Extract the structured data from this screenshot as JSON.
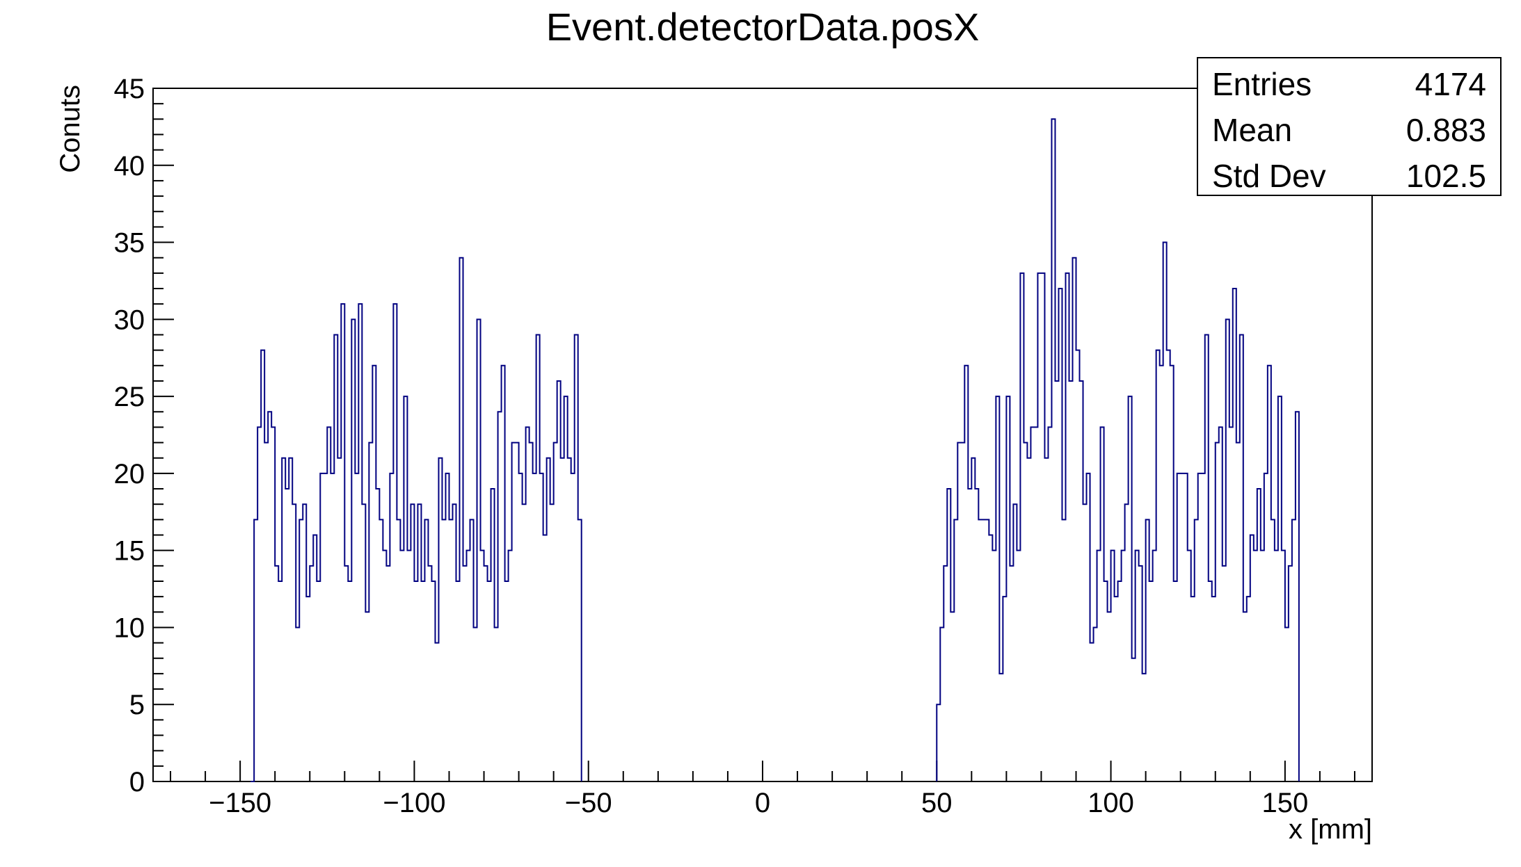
{
  "chart_data": {
    "type": "bar",
    "histogram": true,
    "title": "Event.detectorData.posX",
    "xlabel": "x [mm]",
    "ylabel": "Conuts",
    "xlim": [
      -175,
      175
    ],
    "ylim": [
      0,
      45
    ],
    "bin_width": 1,
    "x_ticks": [
      -150,
      -100,
      -50,
      0,
      50,
      100,
      150
    ],
    "x_tick_labels": [
      "−150",
      "−100",
      "−50",
      "0",
      "50",
      "100",
      "150"
    ],
    "y_ticks": [
      0,
      5,
      10,
      15,
      20,
      25,
      30,
      35,
      40,
      45
    ],
    "y_tick_labels": [
      "0",
      "5",
      "10",
      "15",
      "20",
      "25",
      "30",
      "35",
      "40",
      "45"
    ],
    "line_color": "#000080",
    "grid": false,
    "legend": "none",
    "series": [
      {
        "segments": [
          {
            "x_start": -147,
            "values": [
              0,
              17,
              23,
              28,
              22,
              24,
              23,
              14,
              13,
              21,
              19,
              21,
              18,
              10,
              17,
              18,
              12,
              14,
              16,
              13,
              20,
              20,
              23,
              20,
              29,
              21,
              31,
              14,
              13,
              30,
              20,
              31,
              18,
              11,
              22,
              27,
              19,
              17,
              15,
              14,
              20,
              31,
              17,
              15,
              25,
              15,
              18,
              13,
              18,
              13,
              17,
              14,
              13,
              9,
              21,
              17,
              20,
              17,
              18,
              13,
              34,
              14,
              15,
              17,
              10,
              30,
              15,
              14,
              13,
              19,
              10,
              24,
              27,
              13,
              15,
              22,
              22,
              20,
              18,
              23,
              22,
              20,
              29,
              20,
              16,
              21,
              18,
              22,
              26,
              21,
              25,
              21,
              20,
              29,
              17
            ]
          },
          {
            "x_start": 50,
            "values": [
              5,
              10,
              14,
              19,
              11,
              17,
              22,
              22,
              27,
              19,
              21,
              19,
              17,
              17,
              17,
              16,
              15,
              25,
              7,
              12,
              25,
              14,
              18,
              15,
              33,
              22,
              21,
              23,
              23,
              33,
              33,
              21,
              23,
              43,
              26,
              32,
              17,
              33,
              26,
              34,
              28,
              26,
              18,
              20,
              9,
              10,
              15,
              23,
              13,
              11,
              15,
              12,
              13,
              15,
              18,
              25,
              8,
              15,
              14,
              7,
              17,
              13,
              15,
              28,
              27,
              35,
              28,
              27,
              13,
              20,
              20,
              20,
              15,
              12,
              17,
              20,
              20,
              29,
              13,
              12,
              22,
              23,
              14,
              30,
              23,
              32,
              22,
              29,
              11,
              12,
              16,
              15,
              19,
              15,
              20,
              27,
              17,
              15,
              25,
              15,
              10,
              14,
              17,
              24
            ]
          }
        ]
      }
    ],
    "stats": [
      {
        "label": "Entries",
        "value": "4174"
      },
      {
        "label": "Mean",
        "value": "0.883"
      },
      {
        "label": "Std Dev",
        "value": "102.5"
      }
    ]
  }
}
